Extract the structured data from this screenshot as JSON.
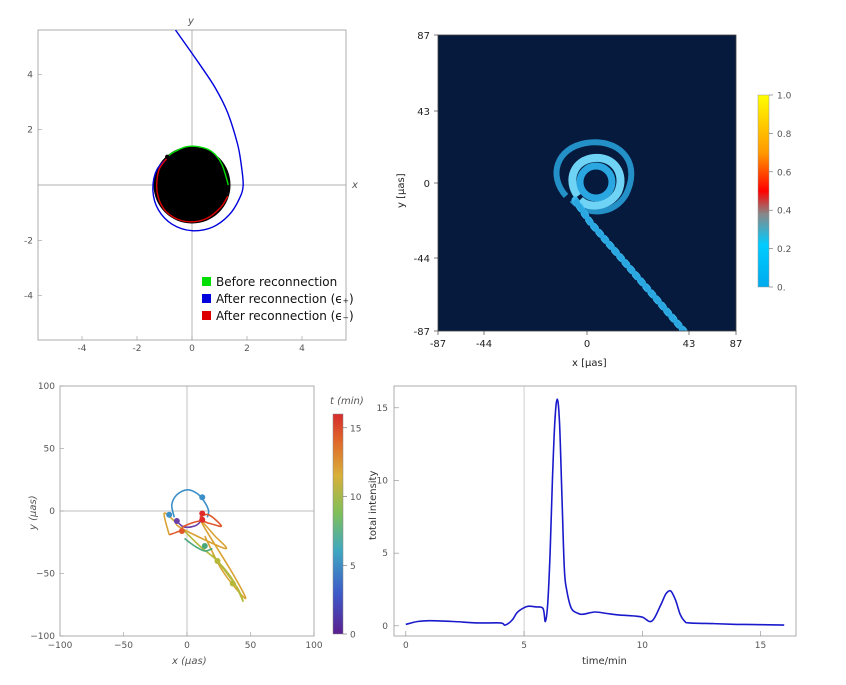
{
  "chart_data": [
    {
      "type": "line",
      "panel": "top-left",
      "xlabel": "x",
      "ylabel": "y",
      "xlim": [
        -5.6,
        5.6
      ],
      "ylim": [
        -5.6,
        5.6
      ],
      "xticks": [
        "-4",
        "-2",
        "0",
        "2",
        "4"
      ],
      "yticks": [
        "-4",
        "-2",
        "2",
        "4"
      ],
      "horizon_radius": 1.4,
      "colors": {
        "before": "#00dd00",
        "after_plus": "#0000dd",
        "after_minus": "#dd0000"
      },
      "series": [
        {
          "name": "Before reconnection",
          "x": [
            1.32,
            1.07,
            0.7,
            0.25,
            -0.21,
            -0.64,
            -0.92
          ],
          "y": [
            0.0,
            0.78,
            1.22,
            1.38,
            1.38,
            1.2,
            1.01
          ]
        },
        {
          "name": "After reconnection (ϵ₊)",
          "x": [
            -0.82,
            -1.28,
            -1.42,
            -1.22,
            -0.72,
            0.0,
            0.75,
            1.35,
            1.72,
            1.86,
            1.78,
            1.65,
            1.3,
            0.85,
            0.25,
            -0.6
          ],
          "y": [
            1.04,
            0.55,
            -0.2,
            -0.9,
            -1.42,
            -1.65,
            -1.52,
            -1.08,
            -0.5,
            0.0,
            0.8,
            1.5,
            2.6,
            3.5,
            4.4,
            5.6
          ]
        },
        {
          "name": "After reconnection (ϵ₋)",
          "x": [
            -0.88,
            -1.2,
            -1.28,
            -1.1,
            -0.7,
            -0.1,
            0.55,
            1.05,
            1.3
          ],
          "y": [
            1.0,
            0.55,
            -0.15,
            -0.75,
            -1.15,
            -1.33,
            -1.2,
            -0.8,
            -0.4
          ]
        }
      ],
      "point": {
        "x": -0.9,
        "y": 1.02
      },
      "legend": [
        "Before reconnection",
        "After reconnection (ϵ₊)",
        "After reconnection (ϵ₋)"
      ],
      "legend_position": "bottom-right"
    },
    {
      "type": "heatmap",
      "panel": "top-right",
      "xlabel": "x [μas]",
      "ylabel": "y [μas]",
      "xticks": [
        "-87",
        "-44",
        "0",
        "43",
        "87"
      ],
      "yticks": [
        "87",
        "43",
        "0",
        "-44",
        "-87"
      ],
      "xlim": [
        -87,
        87
      ],
      "ylim": [
        -87,
        87
      ],
      "colorbar_ticks": [
        "1.0",
        "0.8",
        "0.6",
        "0.4",
        "0.2",
        "0."
      ],
      "background": "#061a3d",
      "image_colors": [
        "#2aa6e0",
        "#6fd3f5"
      ],
      "colorbar_colors": [
        "#ffff00",
        "#ff9900",
        "#ff0000",
        "#888888",
        "#00ccff",
        "#00aaee"
      ]
    },
    {
      "type": "line",
      "panel": "bottom-left",
      "xlabel": "x (μas)",
      "ylabel": "y (μas)",
      "xlim": [
        -100,
        100
      ],
      "ylim": [
        -100,
        100
      ],
      "xticks": [
        "−100",
        "−50",
        "0",
        "50",
        "100"
      ],
      "yticks": [
        "100",
        "50",
        "0",
        "−50",
        "−100"
      ],
      "colorbar_title": "t (min)",
      "colorbar_range": [
        0,
        16
      ],
      "colorbar_ticks": [
        "15",
        "10",
        "5",
        "0"
      ],
      "segments": [
        {
          "color": "#3b8fc8",
          "x": [
            -10,
            -12,
            -8,
            0,
            8,
            14,
            17,
            16
          ],
          "y": [
            -5,
            5,
            13,
            17,
            14,
            7,
            0,
            -5
          ]
        },
        {
          "color": "#6a40a8",
          "x": [
            -8,
            -4,
            0,
            6,
            10,
            12
          ],
          "y": [
            -8,
            -12,
            -13,
            -12,
            -9,
            -3
          ]
        },
        {
          "color": "#e0572a",
          "x": [
            10,
            17,
            27,
            18,
            10,
            -2,
            -6,
            -14
          ],
          "y": [
            -5,
            -3,
            -12,
            -10,
            -8,
            -12,
            -16,
            -19
          ]
        },
        {
          "color": "#d9a233",
          "x": [
            -14,
            -18,
            -10,
            -4,
            30,
            22,
            12,
            36,
            46,
            28,
            14
          ],
          "y": [
            -19,
            -2,
            -8,
            -14,
            -30,
            -20,
            -10,
            -50,
            -70,
            -48,
            -20
          ]
        },
        {
          "color": "#b5b838",
          "x": [
            -4,
            10,
            24,
            36,
            44,
            40,
            30,
            20
          ],
          "y": [
            -14,
            -28,
            -40,
            -55,
            -72,
            -62,
            -48,
            -35
          ]
        },
        {
          "color": "#4aa87a",
          "x": [
            -2,
            6,
            14,
            20
          ],
          "y": [
            -22,
            -28,
            -32,
            -30
          ]
        }
      ],
      "points": [
        {
          "x": 12,
          "y": 11,
          "color": "#3b8fc8"
        },
        {
          "x": -14,
          "y": -3,
          "color": "#3b8fc8"
        },
        {
          "x": -8,
          "y": -8,
          "color": "#6a40a8"
        },
        {
          "x": 12,
          "y": -2,
          "color": "#e02a2a"
        },
        {
          "x": 12,
          "y": -7,
          "color": "#e02a2a"
        },
        {
          "x": -4,
          "y": -16,
          "color": "#e0572a"
        },
        {
          "x": 14,
          "y": -28,
          "color": "#4aa87a"
        },
        {
          "x": 24,
          "y": -40,
          "color": "#b5b838"
        },
        {
          "x": 36,
          "y": -58,
          "color": "#b5b838"
        }
      ],
      "colorbar_colors": [
        "#5a1f8f",
        "#3e58c8",
        "#3fa8c0",
        "#7fbf5a",
        "#d8b03a",
        "#e06b2a",
        "#d62c2c"
      ]
    },
    {
      "type": "line",
      "panel": "bottom-right",
      "xlabel": "time/min",
      "ylabel": "total intensity",
      "xlim": [
        -0.5,
        16.5
      ],
      "ylim": [
        -0.7,
        16.5
      ],
      "xticks": [
        "0",
        "5",
        "10",
        "15"
      ],
      "yticks": [
        "0",
        "5",
        "10",
        "15"
      ],
      "vertical_line_x": 5,
      "series": [
        {
          "name": "",
          "color": "#1a1acc",
          "x": [
            0,
            0.5,
            1,
            2,
            3,
            4,
            4.2,
            4.5,
            4.7,
            5,
            5.2,
            5.5,
            5.8,
            5.9,
            6.0,
            6.1,
            6.2,
            6.3,
            6.4,
            6.5,
            6.6,
            6.7,
            6.8,
            7.0,
            7.3,
            7.5,
            8.0,
            8.5,
            9.0,
            9.5,
            10,
            10.3,
            10.5,
            10.8,
            11,
            11.2,
            11.4,
            11.6,
            11.8,
            12,
            13,
            14,
            15,
            16
          ],
          "y": [
            0.1,
            0.3,
            0.35,
            0.3,
            0.2,
            0.2,
            0.05,
            0.4,
            0.9,
            1.25,
            1.35,
            1.3,
            1.2,
            0.3,
            1.5,
            5,
            10,
            14,
            15.6,
            14,
            9,
            4,
            2.5,
            1.2,
            0.85,
            0.8,
            0.95,
            0.85,
            0.75,
            0.7,
            0.6,
            0.3,
            0.5,
            1.5,
            2.2,
            2.4,
            1.8,
            0.8,
            0.3,
            0.2,
            0.15,
            0.1,
            0.08,
            0.05
          ]
        }
      ]
    }
  ]
}
